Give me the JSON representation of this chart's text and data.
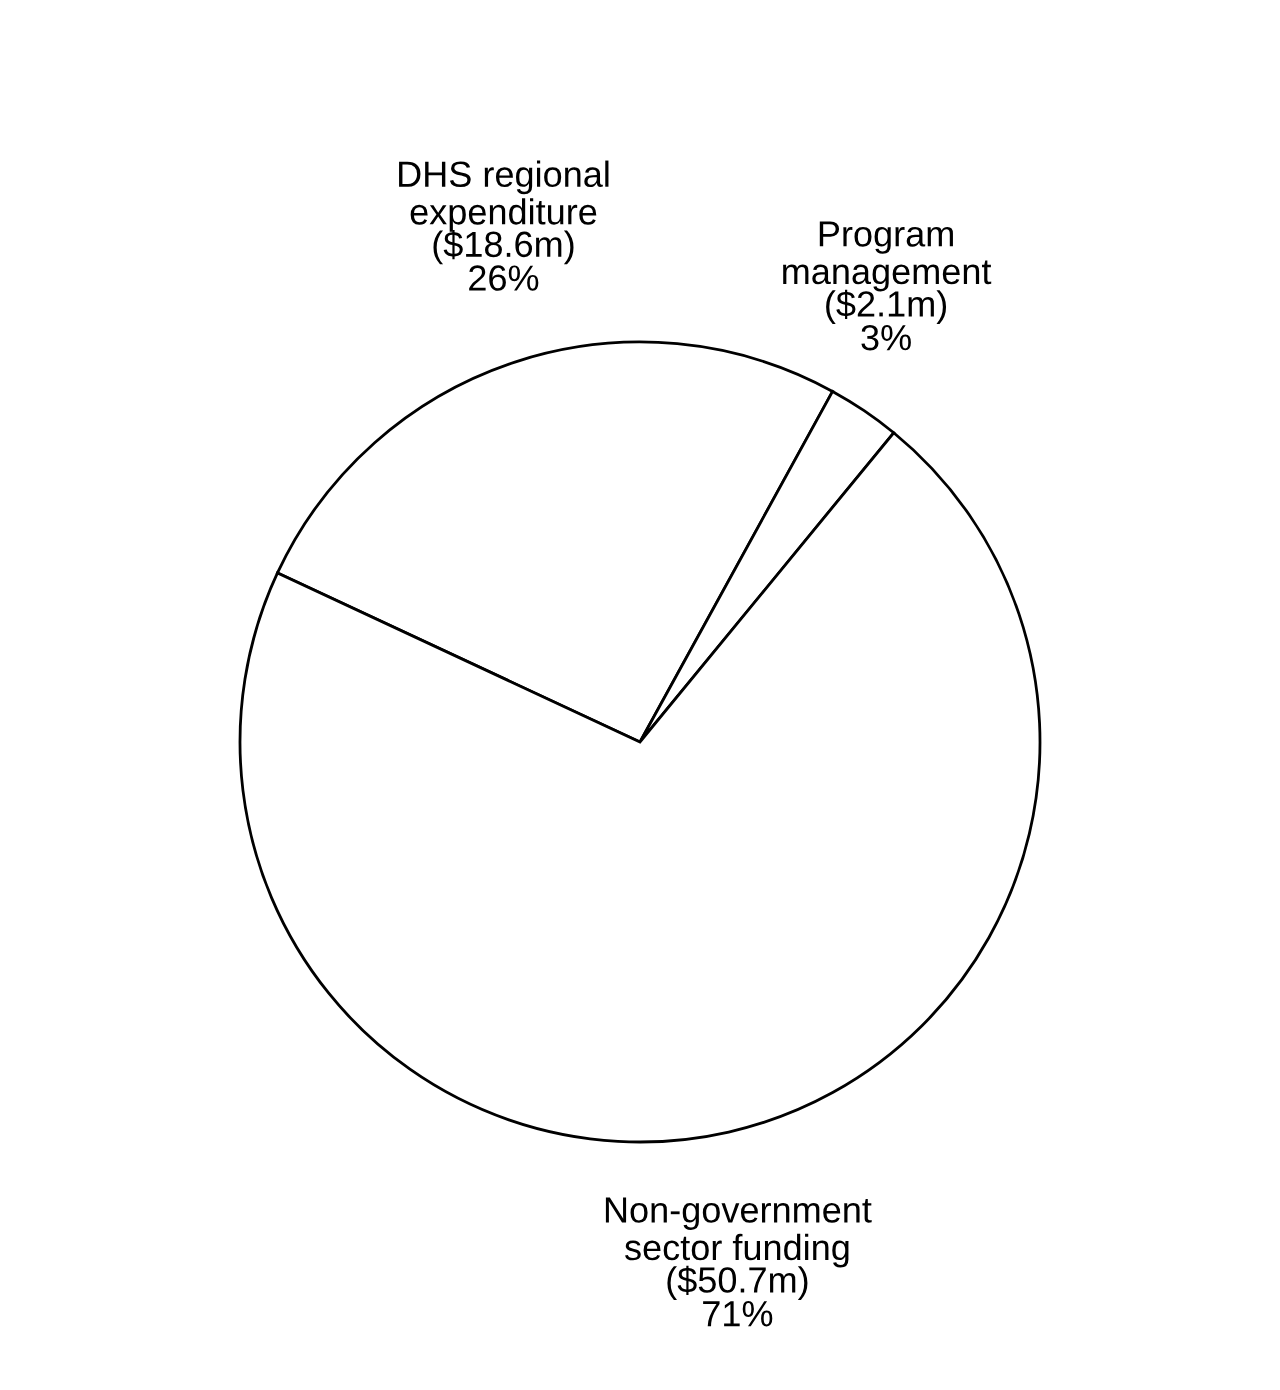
{
  "chart_data": {
    "type": "pie",
    "categories": [
      "DHS regional\nexpenditure",
      "Program\nmanagement",
      "Non-government\nsector funding"
    ],
    "values": [
      18.6,
      2.1,
      50.7
    ],
    "value_labels": [
      "($18.6m)",
      "($2.1m)",
      "($50.7m)"
    ],
    "annotations": [
      "26%",
      "3%",
      "71%"
    ],
    "colors": [
      "#ffffff",
      "#ffffff",
      "#ffffff"
    ]
  }
}
